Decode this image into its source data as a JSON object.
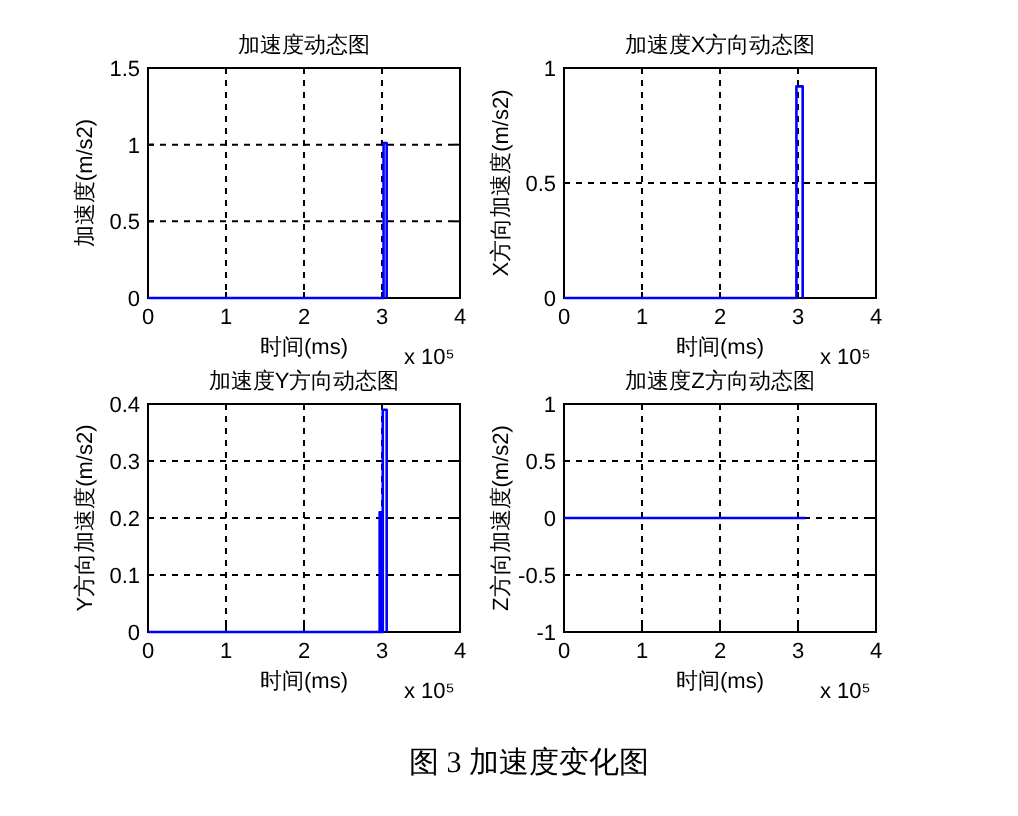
{
  "chart_data": [
    {
      "type": "line",
      "title": "加速度动态图",
      "xlabel": "时间(ms)",
      "ylabel": "加速度(m/s2)",
      "xlim": [
        0,
        4
      ],
      "xticks": [
        0,
        1,
        2,
        3,
        4
      ],
      "ylim": [
        0,
        1.5
      ],
      "yticks": [
        0,
        0.5,
        1,
        1.5
      ],
      "grid": true,
      "series": [
        {
          "color": "#0000ff",
          "x": [
            0,
            3.02,
            3.02,
            3.06,
            3.06
          ],
          "values": [
            0,
            0,
            1.01,
            1.01,
            0
          ]
        }
      ],
      "annotations": [
        "x 10⁵"
      ]
    },
    {
      "type": "line",
      "title": "加速度X方向动态图",
      "xlabel": "时间(ms)",
      "ylabel": "X方向加速度(m/s2)",
      "xlim": [
        0,
        4
      ],
      "xticks": [
        0,
        1,
        2,
        3,
        4
      ],
      "ylim": [
        0,
        1
      ],
      "yticks": [
        0,
        0.5,
        1
      ],
      "grid": true,
      "series": [
        {
          "color": "#0000ff",
          "x": [
            0,
            2.98,
            2.98,
            3.06,
            3.06
          ],
          "values": [
            0,
            0,
            0.92,
            0.92,
            0
          ]
        }
      ],
      "annotations": [
        "x 10⁵"
      ]
    },
    {
      "type": "line",
      "title": "加速度Y方向动态图",
      "xlabel": "时间(ms)",
      "ylabel": "Y方向加速度(m/s2)",
      "xlim": [
        0,
        4
      ],
      "xticks": [
        0,
        1,
        2,
        3,
        4
      ],
      "ylim": [
        0,
        0.4
      ],
      "yticks": [
        0,
        0.1,
        0.2,
        0.3,
        0.4
      ],
      "grid": true,
      "series": [
        {
          "color": "#0000ff",
          "x": [
            0,
            2.97,
            2.97,
            2.99,
            2.99,
            3.01,
            3.01,
            3.06,
            3.06
          ],
          "values": [
            0,
            0,
            0.21,
            0.21,
            0,
            0,
            0.39,
            0.39,
            0
          ]
        }
      ],
      "annotations": [
        "x 10⁵"
      ]
    },
    {
      "type": "line",
      "title": "加速度Z方向动态图",
      "xlabel": "时间(ms)",
      "ylabel": "Z方向加速度(m/s2)",
      "xlim": [
        0,
        4
      ],
      "xticks": [
        0,
        1,
        2,
        3,
        4
      ],
      "ylim": [
        -1,
        1
      ],
      "yticks": [
        -1,
        -0.5,
        0,
        0.5,
        1
      ],
      "grid": true,
      "series": [
        {
          "color": "#0000ff",
          "x": [
            0,
            3.1
          ],
          "values": [
            0,
            0
          ]
        }
      ],
      "annotations": [
        "x 10⁵",
        "图 3  加速度变化图"
      ]
    }
  ]
}
